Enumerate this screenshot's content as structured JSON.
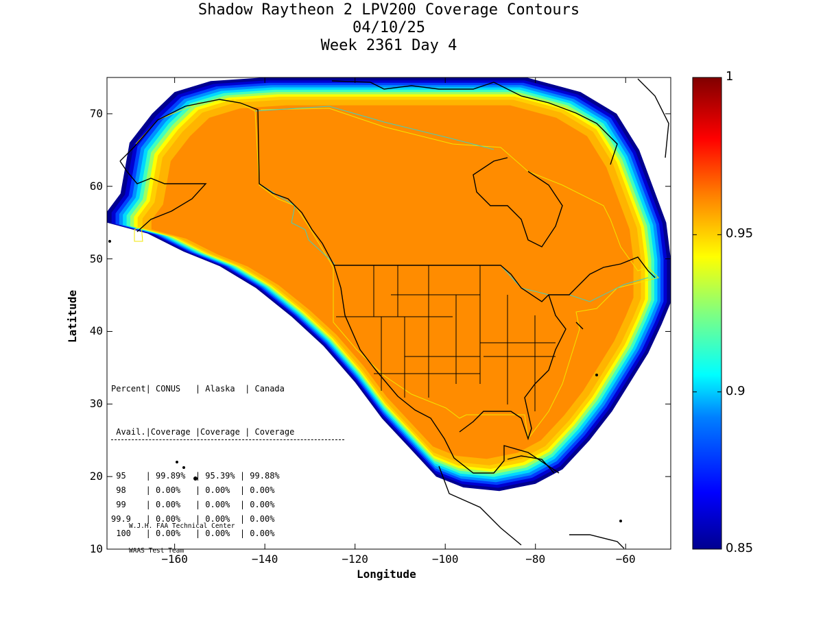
{
  "title": {
    "line1": "Shadow Raytheon 2 LPV200 Coverage Contours",
    "line2": "04/10/25",
    "line3": "Week 2361 Day 4"
  },
  "axes": {
    "xlabel": "Longitude",
    "ylabel": "Latitude",
    "xlim": [
      -175,
      -50
    ],
    "ylim": [
      10,
      75
    ],
    "xticks": [
      -160,
      -140,
      -120,
      -100,
      -80,
      -60
    ],
    "yticks": [
      10,
      20,
      30,
      40,
      50,
      60,
      70
    ]
  },
  "colorbar": {
    "min": 0.85,
    "max": 1,
    "tick_labels": [
      "1",
      "0.95",
      "0.9",
      "0.85"
    ],
    "tick_values": [
      1,
      0.95,
      0.9,
      0.85
    ]
  },
  "coverage_table": {
    "header1": "Percent| CONUS   | Alaska  | Canada",
    "header2": " Avail.|Coverage |Coverage | Coverage",
    "rows": [
      {
        "percent": "95",
        "conus": "99.89%",
        "alaska": "95.39%",
        "canada": "99.88%"
      },
      {
        "percent": "98",
        "conus": "0.00%",
        "alaska": "0.00%",
        "canada": "0.00%"
      },
      {
        "percent": "99",
        "conus": "0.00%",
        "alaska": "0.00%",
        "canada": "0.00%"
      },
      {
        "percent": "99.9",
        "conus": "0.00%",
        "alaska": "0.00%",
        "canada": "0.00%"
      },
      {
        "percent": "100",
        "conus": "0.00%",
        "alaska": "0.00%",
        "canada": "0.00%"
      }
    ]
  },
  "credits": {
    "line1": "W.J.H. FAA Technical Center",
    "line2": "WAAS Test Team"
  },
  "colors": {
    "core": "#ff8c00",
    "band_outer": "#00008f",
    "band_inner": "#ffb400",
    "service_boundary": "#f2e600",
    "canada_boundary": "#40d0c0",
    "coastline": "#000000"
  }
}
